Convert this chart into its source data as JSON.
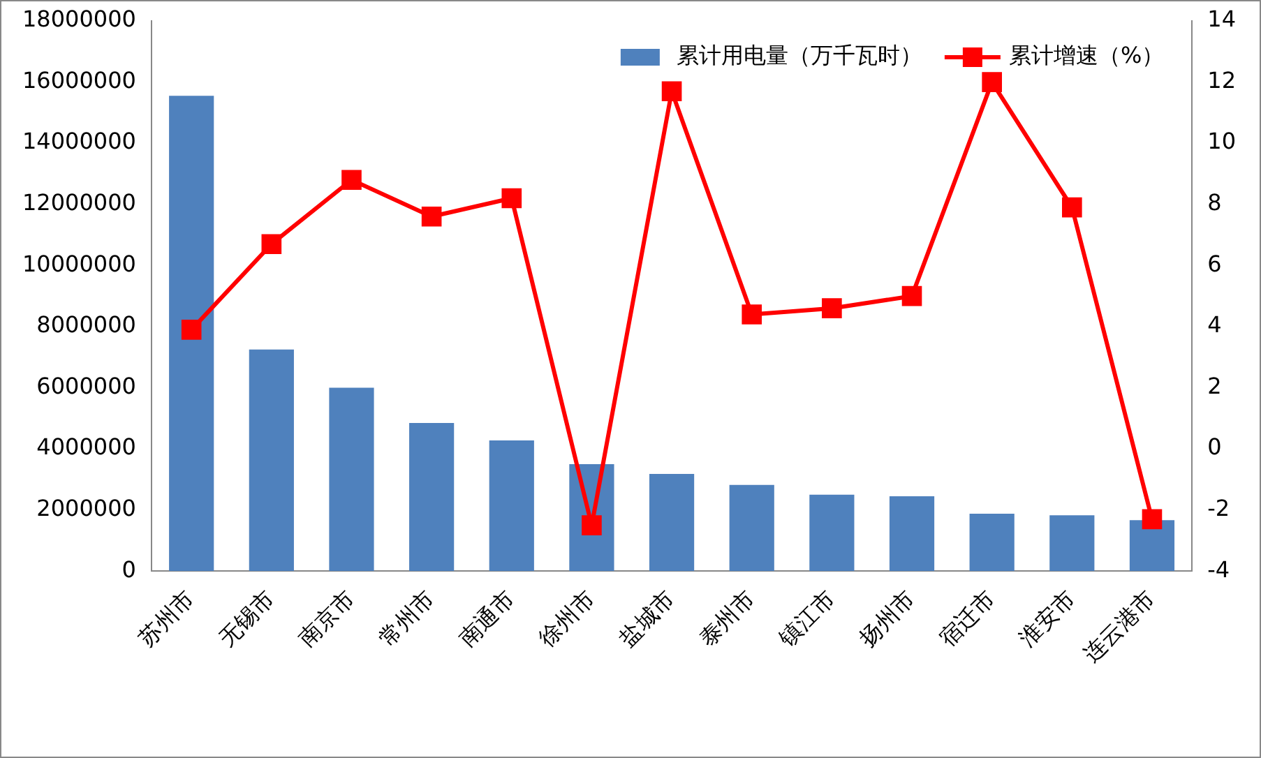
{
  "chart_data": {
    "type": "bar",
    "categories": [
      "苏州市",
      "无锡市",
      "南京市",
      "常州市",
      "南通市",
      "徐州市",
      "盐城市",
      "泰州市",
      "镇江市",
      "扬州市",
      "宿迁市",
      "淮安市",
      "连云港市"
    ],
    "series": [
      {
        "name": "累计用电量（万千瓦时）",
        "color": "#4f81bd",
        "values": [
          15550000,
          7250000,
          6000000,
          4850000,
          4280000,
          3500000,
          3180000,
          2820000,
          2500000,
          2450000,
          1880000,
          1830000,
          1670000
        ]
      },
      {
        "name": "累计增速（%）",
        "type": "line",
        "axis": "y2",
        "color": "#ff0000",
        "values": [
          3.9,
          6.7,
          8.8,
          7.6,
          8.2,
          -2.5,
          11.7,
          4.4,
          4.6,
          5.0,
          12.0,
          7.9,
          -2.3
        ]
      }
    ],
    "ylim": [
      0,
      18000000
    ],
    "yticks": [
      0,
      2000000,
      4000000,
      6000000,
      8000000,
      10000000,
      12000000,
      14000000,
      16000000,
      18000000
    ],
    "y2lim": [
      -4,
      14
    ],
    "y2ticks": [
      -4,
      -2,
      0,
      2,
      4,
      6,
      8,
      10,
      12,
      14
    ],
    "legend": "top right",
    "grid": false,
    "marker": "square",
    "line_style": "solid"
  }
}
